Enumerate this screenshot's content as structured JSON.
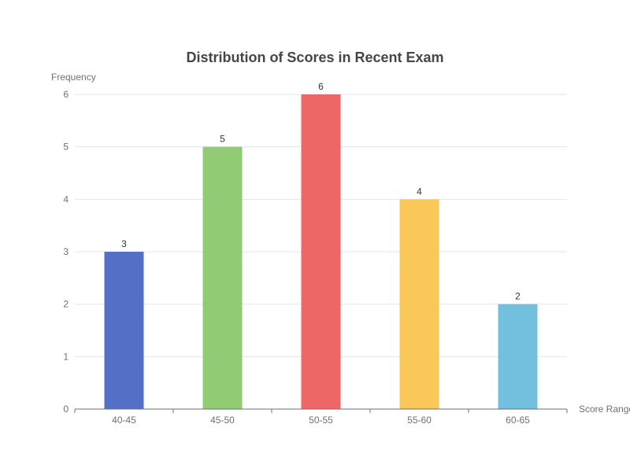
{
  "chart_data": {
    "type": "bar",
    "title": "Distribution of Scores in Recent Exam",
    "xlabel": "Score Range",
    "ylabel": "Frequency",
    "categories": [
      "40-45",
      "45-50",
      "50-55",
      "55-60",
      "60-65"
    ],
    "values": [
      3,
      5,
      6,
      4,
      2
    ],
    "colors": [
      "#5470c6",
      "#91cc75",
      "#ee6666",
      "#fac858",
      "#73c0de"
    ],
    "ylim": [
      0,
      6
    ],
    "yticks": [
      0,
      1,
      2,
      3,
      4,
      5,
      6
    ],
    "grid": true,
    "data_labels": true
  }
}
